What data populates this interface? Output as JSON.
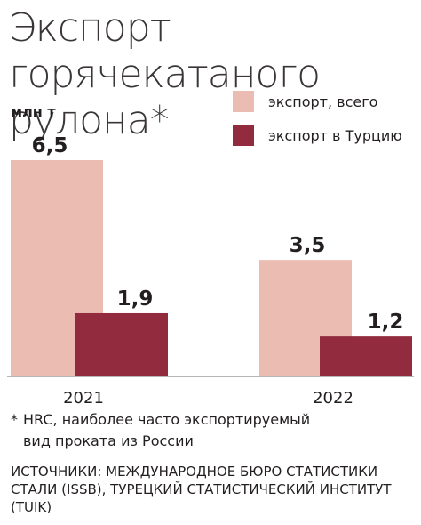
{
  "title_line1": "Экспорт горячекатаного",
  "title_line2": "рулона*",
  "unit": "млн т",
  "footnote": {
    "marker": "*",
    "line1": "HRC, наиболее часто экспортируемый",
    "line2": "вид проката из России"
  },
  "sources": "ИСТОЧНИКИ: МЕЖДУНАРОДНОЕ БЮРО СТАТИСТИКИ СТАЛИ (ISSB), ТУРЕЦКИЙ СТАТИСТИЧЕСКИЙ ИНСТИТУТ (TUIK)",
  "chart_data": {
    "type": "bar",
    "categories": [
      "2021",
      "2022"
    ],
    "series": [
      {
        "name": "экспорт, всего",
        "values": [
          6.5,
          3.5
        ],
        "labels": [
          "6,5",
          "3,5"
        ],
        "color": "#ebbcb1"
      },
      {
        "name": "экспорт в Турцию",
        "values": [
          1.9,
          1.2
        ],
        "labels": [
          "1,9",
          "1,2"
        ],
        "color": "#922b3e"
      }
    ],
    "ylabel": "млн т",
    "ylim": [
      0,
      6.5
    ],
    "grid": false,
    "legend_position": "top-right",
    "axis_color": "#b7b4b4"
  }
}
